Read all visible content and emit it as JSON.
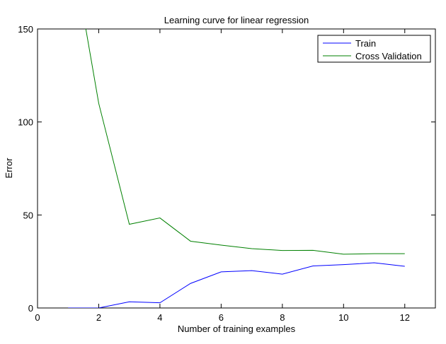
{
  "chart_data": {
    "type": "line",
    "title": "Learning curve for linear regression",
    "xlabel": "Number of training examples",
    "ylabel": "Error",
    "xlim": [
      0,
      13
    ],
    "ylim": [
      0,
      150
    ],
    "xticks": [
      0,
      2,
      4,
      6,
      8,
      10,
      12
    ],
    "yticks": [
      0,
      50,
      100,
      150
    ],
    "grid": false,
    "legend_position": "top-right",
    "series": [
      {
        "name": "Train",
        "color": "#0000ff",
        "x": [
          1,
          2,
          3,
          4,
          5,
          6,
          7,
          8,
          9,
          10,
          11,
          12
        ],
        "values": [
          0,
          0,
          3.3,
          2.8,
          13.2,
          19.4,
          20.1,
          18.2,
          22.6,
          23.3,
          24.3,
          22.4
        ]
      },
      {
        "name": "Cross Validation",
        "color": "#008000",
        "x": [
          1,
          2,
          3,
          4,
          5,
          6,
          7,
          8,
          9,
          10,
          11,
          12
        ],
        "values": [
          205,
          110,
          45.0,
          48.4,
          35.9,
          33.8,
          31.9,
          30.9,
          31.0,
          28.9,
          29.2,
          29.2
        ]
      }
    ]
  }
}
